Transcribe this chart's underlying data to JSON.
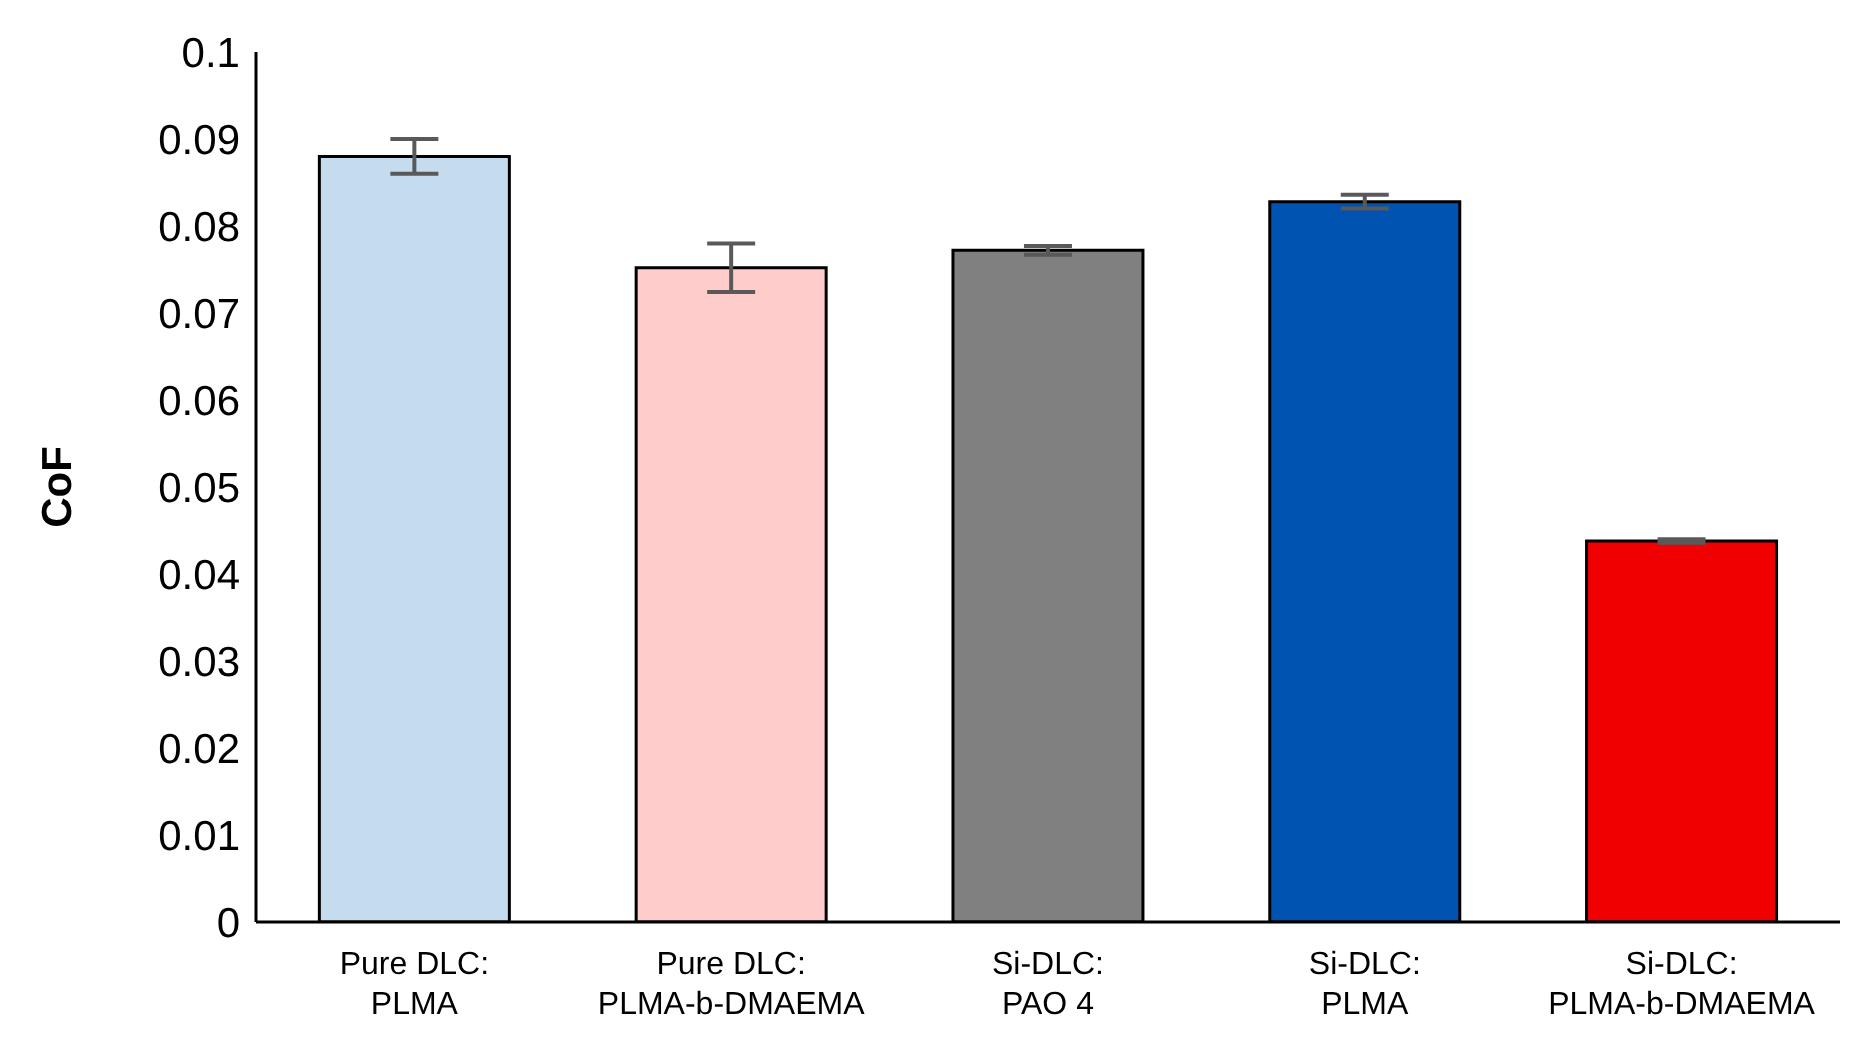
{
  "chart_data": {
    "type": "bar",
    "ylabel": "CoF",
    "categories": [
      "Pure DLC:\nPLMA",
      "Pure DLC:\nPLMA-b-DMAEMA",
      "Si-DLC:\nPAO 4",
      "Si-DLC:\nPLMA",
      "Si-DLC:\nPLMA-b-DMAEMA"
    ],
    "values": [
      0.088,
      0.0752,
      0.0772,
      0.0828,
      0.0438
    ],
    "errors": [
      0.002,
      0.0028,
      0.0005,
      0.0008,
      0.0002
    ],
    "colors": [
      "#c5dcef",
      "#ffcccc",
      "#808080",
      "#0053b0",
      "#f00000"
    ],
    "ylim": [
      0,
      0.1
    ],
    "yticks": [
      0,
      0.01,
      0.02,
      0.03,
      0.04,
      0.05,
      0.06,
      0.07,
      0.08,
      0.09,
      0.1
    ],
    "grid": false
  }
}
